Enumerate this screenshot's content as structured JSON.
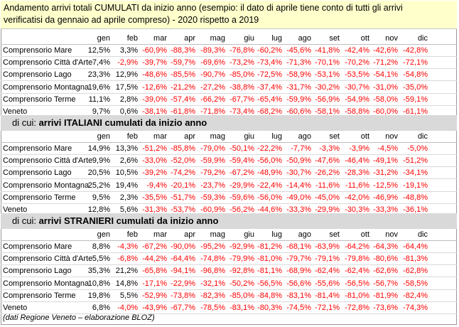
{
  "title": {
    "line1": "Andamento arrivi totali CUMULATI da inizio anno (esempio: il dato di aprile tiene conto di tutti gli arrivi",
    "line2": "verificatisi da gennaio ad aprile compreso) - 2020 rispetto a 2019"
  },
  "months": [
    "gen",
    "feb",
    "mar",
    "apr",
    "mag",
    "giu",
    "lug",
    "ago",
    "set",
    "ott",
    "nov",
    "dic"
  ],
  "sections": [
    {
      "prefix": "",
      "highlight": "",
      "rows": [
        {
          "label": "Comprensorio Mare",
          "values": [
            "12,5%",
            "3,3%",
            "-60,9%",
            "-88,3%",
            "-89,3%",
            "-76,8%",
            "-60,2%",
            "-45,6%",
            "-41,8%",
            "-42,4%",
            "-42,6%",
            "-42,8%"
          ]
        },
        {
          "label": "Comprensorio Città d'Arte",
          "values": [
            "7,4%",
            "-2,9%",
            "-39,7%",
            "-59,7%",
            "-69,6%",
            "-73,2%",
            "-73,4%",
            "-71,3%",
            "-70,1%",
            "-70,2%",
            "-71,2%",
            "-72,1%"
          ]
        },
        {
          "label": "Comprensorio Lago",
          "values": [
            "23,3%",
            "12,9%",
            "-48,6%",
            "-85,5%",
            "-90,7%",
            "-85,0%",
            "-72,5%",
            "-58,9%",
            "-53,1%",
            "-53,5%",
            "-54,1%",
            "-54,8%"
          ]
        },
        {
          "label": "Comprensorio Montagna",
          "values": [
            "19,6%",
            "17,5%",
            "-12,6%",
            "-21,2%",
            "-27,2%",
            "-38,8%",
            "-37,4%",
            "-31,7%",
            "-30,2%",
            "-30,7%",
            "-31,0%",
            "-35,0%"
          ]
        },
        {
          "label": "Comprensorio Terme",
          "values": [
            "11,1%",
            "2,8%",
            "-39,0%",
            "-57,4%",
            "-66,2%",
            "-67,7%",
            "-65,4%",
            "-59,9%",
            "-56,9%",
            "-54,9%",
            "-58,0%",
            "-59,1%"
          ]
        },
        {
          "label": "Veneto",
          "values": [
            "9,7%",
            "0,6%",
            "-38,1%",
            "-61,8%",
            "-71,8%",
            "-73,4%",
            "-68,2%",
            "-60,6%",
            "-58,1%",
            "-58,8%",
            "-60,0%",
            "-61,1%"
          ]
        }
      ]
    },
    {
      "prefix": "di cui: ",
      "highlight": "arrivi ITALIANI cumulati da inizio anno",
      "rows": [
        {
          "label": "Comprensorio Mare",
          "values": [
            "14,9%",
            "13,3%",
            "-51,2%",
            "-85,8%",
            "-79,0%",
            "-50,1%",
            "-22,2%",
            "-7,7%",
            "-3,3%",
            "-3,9%",
            "-4,5%",
            "-5,0%"
          ]
        },
        {
          "label": "Comprensorio Città d'Arte",
          "values": [
            "9,9%",
            "2,6%",
            "-33,0%",
            "-52,0%",
            "-59,9%",
            "-59,4%",
            "-56,0%",
            "-50,9%",
            "-47,6%",
            "-46,4%",
            "-49,1%",
            "-51,2%"
          ]
        },
        {
          "label": "Comprensorio Lago",
          "values": [
            "20,5%",
            "10,5%",
            "-39,2%",
            "-74,2%",
            "-79,2%",
            "-67,2%",
            "-48,9%",
            "-30,7%",
            "-26,2%",
            "-28,3%",
            "-31,2%",
            "-34,1%"
          ]
        },
        {
          "label": "Comprensorio Montagna",
          "values": [
            "25,2%",
            "19,4%",
            "-9,4%",
            "-20,1%",
            "-23,7%",
            "-29,9%",
            "-22,4%",
            "-14,4%",
            "-11,6%",
            "-11,6%",
            "-12,5%",
            "-19,1%"
          ]
        },
        {
          "label": "Comprensorio Terme",
          "values": [
            "9,5%",
            "2,3%",
            "-35,5%",
            "-51,7%",
            "-59,3%",
            "-59,6%",
            "-56,0%",
            "-49,0%",
            "-45,0%",
            "-42,0%",
            "-46,9%",
            "-48,8%"
          ]
        },
        {
          "label": "Veneto",
          "values": [
            "12,8%",
            "5,6%",
            "-31,3%",
            "-53,7%",
            "-60,9%",
            "-56,2%",
            "-44,6%",
            "-33,3%",
            "-29,9%",
            "-30,3%",
            "-33,3%",
            "-36,1%"
          ]
        }
      ]
    },
    {
      "prefix": "di cui: ",
      "highlight": "arrivi STRANIERI cumulati da inizio anno",
      "rows": [
        {
          "label": "Comprensorio Mare",
          "values": [
            "8,8%",
            "-4,3%",
            "-67,2%",
            "-90,0%",
            "-95,2%",
            "-92,9%",
            "-81,2%",
            "-68,1%",
            "-63,9%",
            "-64,2%",
            "-64,3%",
            "-64,4%"
          ]
        },
        {
          "label": "Comprensorio Città d'Arte",
          "values": [
            "5,5%",
            "-6,8%",
            "-44,2%",
            "-64,4%",
            "-74,8%",
            "-79,9%",
            "-81,0%",
            "-79,7%",
            "-79,1%",
            "-79,8%",
            "-80,6%",
            "-81,3%"
          ]
        },
        {
          "label": "Comprensorio Lago",
          "values": [
            "35,3%",
            "21,2%",
            "-65,8%",
            "-94,1%",
            "-96,8%",
            "-92,8%",
            "-81,1%",
            "-68,9%",
            "-62,4%",
            "-62,4%",
            "-62,6%",
            "-62,8%"
          ]
        },
        {
          "label": "Comprensorio Montagna",
          "values": [
            "10,8%",
            "14,8%",
            "-17,1%",
            "-22,9%",
            "-32,1%",
            "-50,2%",
            "-56,5%",
            "-56,6%",
            "-55,6%",
            "-56,5%",
            "-56,7%",
            "-58,5%"
          ]
        },
        {
          "label": "Comprensorio Terme",
          "values": [
            "19,8%",
            "5,5%",
            "-52,9%",
            "-73,8%",
            "-82,3%",
            "-85,0%",
            "-84,8%",
            "-83,1%",
            "-81,4%",
            "-81,0%",
            "-81,9%",
            "-82,4%"
          ]
        },
        {
          "label": "Veneto",
          "values": [
            "6,8%",
            "-4,0%",
            "-43,9%",
            "-67,7%",
            "-78,5%",
            "-83,1%",
            "-80,3%",
            "-74,5%",
            "-72,1%",
            "-72,8%",
            "-73,6%",
            "-74,3%"
          ]
        }
      ]
    }
  ],
  "footer": "(dati Regione Veneto – elaborazione BLOZ)",
  "colors": {
    "title_bg": "#ffffcc",
    "section_bg": "#d9d9d9",
    "negative": "#ff0000"
  }
}
